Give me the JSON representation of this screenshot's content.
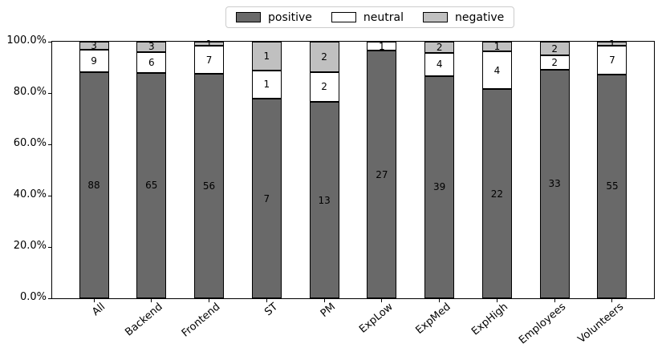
{
  "chart_data": {
    "type": "bar",
    "stacked": true,
    "percent_normalized": true,
    "title": "",
    "xlabel": "",
    "ylabel": "",
    "grid": false,
    "categories": [
      "All",
      "Backend",
      "Frontend",
      "ST",
      "PM",
      "ExpLow",
      "ExpMed",
      "ExpHigh",
      "Employees",
      "Volunteers"
    ],
    "series": [
      {
        "name": "positive",
        "color": "#696969",
        "values": [
          88,
          65,
          56,
          7,
          13,
          27,
          39,
          22,
          33,
          55
        ]
      },
      {
        "name": "neutral",
        "color": "#ffffff",
        "values": [
          9,
          6,
          7,
          1,
          2,
          1,
          4,
          4,
          2,
          7
        ]
      },
      {
        "name": "negative",
        "color": "#c0c0c0",
        "values": [
          3,
          3,
          1,
          1,
          2,
          0,
          2,
          1,
          2,
          1
        ]
      }
    ],
    "bar_edge_color": "#000000",
    "ylim": [
      0,
      100
    ],
    "y_axis": {
      "ticks": [
        {
          "value": 0,
          "label": "0.0%"
        },
        {
          "value": 20,
          "label": "20.0%"
        },
        {
          "value": 40,
          "label": "40.0%"
        },
        {
          "value": 60,
          "label": "60.0%"
        },
        {
          "value": 80,
          "label": "80.0%"
        },
        {
          "value": 100,
          "label": "100.0%"
        }
      ]
    },
    "legend": {
      "position": "top-center",
      "entries": [
        "positive",
        "neutral",
        "negative"
      ]
    }
  }
}
